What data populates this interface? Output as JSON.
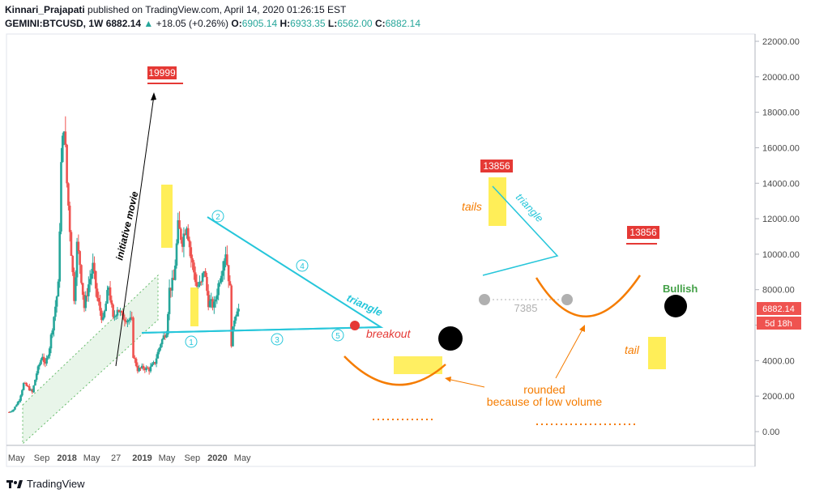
{
  "header": {
    "author": "Kinnari_Prajapati",
    "published": "published on TradingView.com, April 14, 2020 01:26:15 EST",
    "symbol": "GEMINI:BTCUSD, 1W",
    "last": "6882.14",
    "change": "+18.05 (+0.26%)",
    "o_label": "O:",
    "o": "6905.14",
    "h_label": "H:",
    "h": "6933.35",
    "l_label": "L:",
    "l": "6562.00",
    "c_label": "C:",
    "c": "6882.14"
  },
  "footer": {
    "brand": "TradingView"
  },
  "colors": {
    "up": "#26a69a",
    "down": "#ef5350",
    "annotation_red": "#e53935",
    "trend_cyan": "#26c6da",
    "orange": "#f57c00",
    "highlight": "#ffeb3b"
  },
  "chart_data": {
    "type": "candlestick",
    "interval": "1W",
    "ylim": [
      -600,
      22500
    ],
    "y_ticks": [
      "22000.00",
      "20000.00",
      "18000.00",
      "16000.00",
      "14000.00",
      "12000.00",
      "10000.00",
      "8000.00",
      "6000.00",
      "4000.00",
      "2000.00",
      "0.00"
    ],
    "x_ticks": [
      "May",
      "Sep",
      "2018",
      "May",
      "27",
      "2019",
      "May",
      "Sep",
      "2020",
      "May"
    ],
    "x_tick_dates": [
      "2017-05-01",
      "2017-09-01",
      "2018-01-01",
      "2018-05-01",
      "2018-08-27",
      "2019-01-01",
      "2019-05-01",
      "2019-09-01",
      "2020-01-01",
      "2020-05-01"
    ],
    "price_label": "6882.14",
    "countdown_label": "5d 18h",
    "close_path": [
      [
        "2017-03-27",
        1100
      ],
      [
        "2017-04-17",
        1250
      ],
      [
        "2017-05-15",
        1800
      ],
      [
        "2017-06-05",
        2700
      ],
      [
        "2017-06-26",
        2500
      ],
      [
        "2017-07-17",
        2200
      ],
      [
        "2017-08-07",
        3300
      ],
      [
        "2017-09-04",
        4300
      ],
      [
        "2017-09-18",
        3700
      ],
      [
        "2017-10-09",
        4800
      ],
      [
        "2017-10-30",
        6500
      ],
      [
        "2017-11-20",
        8200
      ],
      [
        "2017-12-04",
        15000
      ],
      [
        "2017-12-18",
        17500
      ],
      [
        "2018-01-01",
        14000
      ],
      [
        "2018-01-15",
        11500
      ],
      [
        "2018-02-05",
        7600
      ],
      [
        "2018-02-19",
        10500
      ],
      [
        "2018-03-05",
        9500
      ],
      [
        "2018-03-26",
        7000
      ],
      [
        "2018-04-16",
        8300
      ],
      [
        "2018-05-07",
        9300
      ],
      [
        "2018-05-28",
        7500
      ],
      [
        "2018-06-25",
        6200
      ],
      [
        "2018-07-23",
        8200
      ],
      [
        "2018-08-13",
        6300
      ],
      [
        "2018-09-03",
        7000
      ],
      [
        "2018-09-24",
        6500
      ],
      [
        "2018-10-15",
        6400
      ],
      [
        "2018-11-12",
        6200
      ],
      [
        "2018-11-19",
        4300
      ],
      [
        "2018-12-10",
        3500
      ],
      [
        "2019-01-07",
        3600
      ],
      [
        "2019-02-04",
        3500
      ],
      [
        "2019-03-04",
        3900
      ],
      [
        "2019-04-01",
        5000
      ],
      [
        "2019-04-29",
        5700
      ],
      [
        "2019-05-13",
        8000
      ],
      [
        "2019-06-03",
        8500
      ],
      [
        "2019-06-24",
        11500
      ],
      [
        "2019-07-15",
        10800
      ],
      [
        "2019-08-05",
        11800
      ],
      [
        "2019-08-26",
        9800
      ],
      [
        "2019-09-23",
        8200
      ],
      [
        "2019-10-14",
        8300
      ],
      [
        "2019-10-28",
        9200
      ],
      [
        "2019-11-18",
        7300
      ],
      [
        "2019-12-16",
        7100
      ],
      [
        "2020-01-13",
        8700
      ],
      [
        "2020-02-10",
        10200
      ],
      [
        "2020-03-02",
        8000
      ],
      [
        "2020-03-09",
        5000
      ],
      [
        "2020-03-23",
        6400
      ],
      [
        "2020-04-06",
        7000
      ],
      [
        "2020-04-13",
        6882
      ]
    ],
    "annotations": {
      "peak_2017": "19999",
      "peak_2019": "13856",
      "peak_2020": "13856",
      "initiative_move": "initiative movie",
      "triangle_1": "triangle",
      "triangle_2": "triangle",
      "breakout": "breakout",
      "tails": "tails",
      "tail": "tail",
      "level_7385": "7385",
      "bullish": "Bullish",
      "rounded": "rounded",
      "low_volume": "because of low volume",
      "points": [
        "1",
        "2",
        "3",
        "4",
        "5"
      ]
    }
  }
}
